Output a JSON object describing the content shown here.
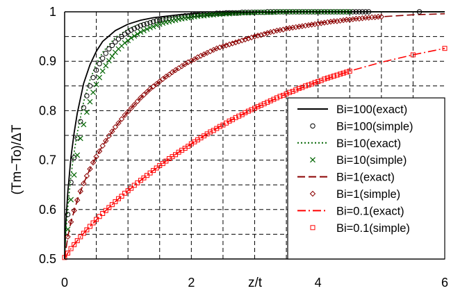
{
  "chart_data": {
    "type": "line",
    "xlabel": "z/t",
    "ylabel": "(Tm−To)/ΔT",
    "xlim": [
      0,
      6
    ],
    "ylim": [
      0.5,
      1.0
    ],
    "x_major_ticks": [
      "0",
      "2",
      "4",
      "6"
    ],
    "y_major_ticks": [
      "0.5",
      "0.6",
      "0.7",
      "0.8",
      "0.9",
      "1"
    ],
    "x_minor_step": 0.5,
    "y_minor_step": 0.05,
    "grid": true,
    "legend_position": "bottom-right",
    "series": [
      {
        "name": "Bi=100(exact)",
        "style": "solid",
        "color": "#000000",
        "x": [
          0,
          0.02,
          0.05,
          0.1,
          0.15,
          0.2,
          0.3,
          0.4,
          0.5,
          0.6,
          0.8,
          1.0,
          1.2,
          1.4,
          1.6,
          1.8,
          2.0,
          2.3,
          2.6,
          3.0,
          3.5,
          4.0,
          4.5,
          5.0,
          6.0
        ],
        "y": [
          0.5,
          0.575,
          0.635,
          0.706,
          0.755,
          0.795,
          0.855,
          0.893,
          0.92,
          0.94,
          0.962,
          0.975,
          0.983,
          0.988,
          0.991,
          0.994,
          0.996,
          0.997,
          0.998,
          0.999,
          1.0,
          1.0,
          1.0,
          1.0,
          1.0
        ]
      },
      {
        "name": "Bi=100(simple)",
        "style": "circle",
        "color": "#000000",
        "x": [
          0.05,
          0.1,
          0.15,
          0.2,
          0.25,
          0.3,
          0.35,
          0.4,
          0.45,
          0.5,
          0.55,
          0.6,
          0.65,
          0.7,
          0.75,
          0.8,
          0.85,
          0.9,
          0.95,
          1.0,
          1.05,
          1.1,
          1.15,
          1.2,
          1.25,
          1.3,
          1.35,
          1.4,
          1.45,
          1.5,
          1.55,
          1.6,
          1.65,
          1.7,
          1.75,
          1.8,
          1.85,
          1.9,
          1.95,
          2.0,
          2.05,
          2.1,
          2.15,
          2.2,
          2.25,
          2.3,
          2.35,
          2.4,
          2.45,
          2.5,
          2.55,
          2.6,
          2.65,
          2.7,
          2.75,
          2.8,
          2.85,
          2.9,
          2.95,
          3.0,
          3.05,
          3.1,
          3.15,
          3.2,
          3.25,
          3.3,
          3.35,
          3.4,
          3.45,
          3.5,
          3.55,
          3.6,
          3.65,
          3.7,
          3.75,
          3.8,
          3.85,
          3.9,
          3.95,
          4.0,
          4.05,
          4.1,
          4.15,
          4.2,
          4.25,
          4.3,
          4.35,
          4.4,
          4.45,
          4.5,
          4.55,
          4.6,
          4.65,
          4.7,
          4.75,
          4.8,
          5.6
        ],
        "y": [
          0.59,
          0.655,
          0.705,
          0.745,
          0.778,
          0.806,
          0.83,
          0.85,
          0.867,
          0.882,
          0.895,
          0.906,
          0.916,
          0.925,
          0.932,
          0.939,
          0.945,
          0.95,
          0.955,
          0.959,
          0.963,
          0.966,
          0.969,
          0.972,
          0.974,
          0.976,
          0.978,
          0.98,
          0.982,
          0.983,
          0.985,
          0.986,
          0.987,
          0.988,
          0.989,
          0.99,
          0.991,
          0.992,
          0.992,
          0.993,
          0.994,
          0.994,
          0.995,
          0.995,
          0.996,
          0.996,
          0.996,
          0.997,
          0.997,
          0.997,
          0.998,
          0.998,
          0.998,
          0.998,
          0.998,
          0.999,
          0.999,
          0.999,
          0.999,
          0.999,
          0.999,
          0.999,
          0.999,
          1.0,
          1.0,
          1.0,
          1.0,
          1.0,
          1.0,
          1.0,
          1.0,
          1.0,
          1.0,
          1.0,
          1.0,
          1.0,
          1.0,
          1.0,
          1.0,
          1.0,
          1.0,
          1.0,
          1.0,
          1.0,
          1.0,
          1.0,
          1.0,
          1.0,
          1.0,
          1.0,
          1.0,
          1.0,
          1.0,
          1.0,
          1.0,
          1.0,
          1.0
        ]
      },
      {
        "name": "Bi=10(exact)",
        "style": "dotted",
        "color": "#006400",
        "x": [
          0,
          0.02,
          0.05,
          0.1,
          0.15,
          0.2,
          0.3,
          0.4,
          0.5,
          0.6,
          0.8,
          1.0,
          1.2,
          1.4,
          1.6,
          1.8,
          2.0,
          2.3,
          2.6,
          3.0,
          3.5,
          4.0,
          4.5,
          5.0,
          6.0
        ],
        "y": [
          0.5,
          0.555,
          0.605,
          0.668,
          0.716,
          0.755,
          0.818,
          0.862,
          0.895,
          0.918,
          0.948,
          0.965,
          0.976,
          0.983,
          0.988,
          0.991,
          0.993,
          0.995,
          0.997,
          0.998,
          0.999,
          1.0,
          1.0,
          1.0,
          1.0
        ]
      },
      {
        "name": "Bi=10(simple)",
        "style": "x",
        "color": "#006400",
        "x": [
          0.05,
          0.1,
          0.15,
          0.2,
          0.25,
          0.3,
          0.35,
          0.4,
          0.45,
          0.5,
          0.55,
          0.6,
          0.65,
          0.7,
          0.75,
          0.8,
          0.85,
          0.9,
          0.95,
          1.0,
          1.05,
          1.1,
          1.15,
          1.2,
          1.25,
          1.3,
          1.35,
          1.4,
          1.45,
          1.5,
          1.55,
          1.6,
          1.65,
          1.7,
          1.75,
          1.8,
          1.85,
          1.9,
          1.95,
          2.0,
          2.05,
          2.1,
          2.15,
          2.2,
          2.25,
          2.3,
          2.35,
          2.4,
          2.45,
          2.5,
          2.55,
          2.6,
          2.65,
          2.7,
          2.75,
          2.8,
          2.85,
          2.9,
          2.95,
          3.0,
          3.05,
          3.1,
          3.15,
          3.2,
          3.25,
          3.3,
          3.35,
          3.4,
          3.45,
          3.5,
          3.55,
          3.6,
          3.65,
          3.7,
          3.75,
          3.8,
          3.85,
          3.9,
          3.95,
          4.0,
          4.05,
          4.1,
          4.15,
          4.2,
          4.25,
          4.3,
          4.35,
          4.4,
          4.45,
          4.5
        ],
        "y": [
          0.56,
          0.62,
          0.67,
          0.71,
          0.744,
          0.772,
          0.797,
          0.818,
          0.837,
          0.853,
          0.867,
          0.88,
          0.891,
          0.901,
          0.91,
          0.918,
          0.925,
          0.931,
          0.937,
          0.942,
          0.947,
          0.951,
          0.955,
          0.959,
          0.962,
          0.965,
          0.968,
          0.97,
          0.973,
          0.975,
          0.977,
          0.979,
          0.98,
          0.982,
          0.983,
          0.985,
          0.986,
          0.987,
          0.988,
          0.989,
          0.99,
          0.991,
          0.992,
          0.992,
          0.993,
          0.994,
          0.994,
          0.995,
          0.995,
          0.996,
          0.996,
          0.996,
          0.997,
          0.997,
          0.997,
          0.998,
          0.998,
          0.998,
          0.998,
          0.999,
          0.999,
          0.999,
          0.999,
          0.999,
          0.999,
          0.999,
          1.0,
          1.0,
          1.0,
          1.0,
          1.0,
          1.0,
          1.0,
          1.0,
          1.0,
          1.0,
          1.0,
          1.0,
          1.0,
          1.0,
          1.0,
          1.0,
          1.0,
          1.0,
          1.0,
          1.0,
          1.0,
          1.0,
          1.0,
          1.0
        ]
      },
      {
        "name": "Bi=1(exact)",
        "style": "dashed",
        "color": "#8b0000",
        "x": [
          0,
          0.05,
          0.1,
          0.2,
          0.3,
          0.4,
          0.5,
          0.6,
          0.8,
          1.0,
          1.2,
          1.4,
          1.6,
          1.8,
          2.0,
          2.2,
          2.4,
          2.6,
          2.8,
          3.0,
          3.2,
          3.5,
          4.0,
          4.5,
          5.0,
          5.5,
          6.0
        ],
        "y": [
          0.5,
          0.545,
          0.575,
          0.619,
          0.653,
          0.682,
          0.707,
          0.729,
          0.767,
          0.798,
          0.826,
          0.849,
          0.869,
          0.886,
          0.901,
          0.914,
          0.926,
          0.936,
          0.944,
          0.952,
          0.958,
          0.966,
          0.977,
          0.985,
          0.99,
          0.994,
          0.996
        ]
      },
      {
        "name": "Bi=1(simple)",
        "style": "diamond",
        "color": "#8b0000",
        "x": [
          0.05,
          0.1,
          0.15,
          0.2,
          0.25,
          0.3,
          0.35,
          0.4,
          0.45,
          0.5,
          0.55,
          0.6,
          0.65,
          0.7,
          0.75,
          0.8,
          0.85,
          0.9,
          0.95,
          1.0,
          1.05,
          1.1,
          1.15,
          1.2,
          1.25,
          1.3,
          1.35,
          1.4,
          1.45,
          1.5,
          1.55,
          1.6,
          1.65,
          1.7,
          1.75,
          1.8,
          1.85,
          1.9,
          1.95,
          2.0,
          2.05,
          2.1,
          2.15,
          2.2,
          2.25,
          2.3,
          2.35,
          2.4,
          2.45,
          2.5,
          2.55,
          2.6,
          2.65,
          2.7,
          2.75,
          2.8,
          2.85,
          2.9,
          2.95,
          3.0,
          3.05,
          3.1,
          3.15,
          3.2,
          3.25,
          3.3,
          3.35,
          3.4,
          3.45,
          3.5,
          3.55,
          3.6,
          3.65,
          3.7,
          3.75,
          3.8,
          3.85,
          3.9,
          3.95,
          4.0,
          4.05,
          4.1,
          4.15,
          4.2,
          4.25,
          4.3,
          4.35,
          4.4,
          4.45,
          4.5,
          4.55,
          4.6,
          4.65,
          4.7,
          4.75,
          4.8,
          4.85,
          4.9,
          4.95,
          5.0
        ],
        "y": [
          0.545,
          0.575,
          0.598,
          0.619,
          0.637,
          0.653,
          0.668,
          0.682,
          0.695,
          0.707,
          0.718,
          0.729,
          0.739,
          0.749,
          0.758,
          0.767,
          0.775,
          0.783,
          0.791,
          0.798,
          0.805,
          0.812,
          0.819,
          0.826,
          0.832,
          0.838,
          0.844,
          0.849,
          0.854,
          0.859,
          0.864,
          0.869,
          0.873,
          0.878,
          0.882,
          0.886,
          0.89,
          0.894,
          0.898,
          0.901,
          0.904,
          0.908,
          0.911,
          0.914,
          0.917,
          0.92,
          0.923,
          0.926,
          0.928,
          0.93,
          0.932,
          0.934,
          0.936,
          0.938,
          0.94,
          0.942,
          0.944,
          0.946,
          0.948,
          0.95,
          0.952,
          0.953,
          0.955,
          0.957,
          0.959,
          0.96,
          0.962,
          0.963,
          0.964,
          0.966,
          0.967,
          0.968,
          0.969,
          0.97,
          0.971,
          0.972,
          0.973,
          0.974,
          0.975,
          0.976,
          0.977,
          0.978,
          0.979,
          0.98,
          0.981,
          0.981,
          0.982,
          0.983,
          0.984,
          0.984,
          0.985,
          0.986,
          0.986,
          0.987,
          0.988,
          0.988,
          0.989,
          0.989,
          0.99,
          0.99
        ]
      },
      {
        "name": "Bi=0.1(exact)",
        "style": "dashdot",
        "color": "#ff0000",
        "x": [
          0,
          0.02,
          0.05,
          0.1,
          0.2,
          0.3,
          0.4,
          0.6,
          0.8,
          1.0,
          1.2,
          1.4,
          1.6,
          1.8,
          2.0,
          2.3,
          2.6,
          3.0,
          3.5,
          4.0,
          4.5,
          5.0,
          5.5,
          6.0
        ],
        "y": [
          0.5,
          0.505,
          0.512,
          0.521,
          0.537,
          0.552,
          0.566,
          0.592,
          0.616,
          0.638,
          0.659,
          0.679,
          0.698,
          0.716,
          0.733,
          0.757,
          0.779,
          0.805,
          0.834,
          0.859,
          0.88,
          0.898,
          0.913,
          0.926
        ]
      },
      {
        "name": "Bi=0.1(simple)",
        "style": "square",
        "color": "#ff0000",
        "x": [
          0.0,
          0.05,
          0.1,
          0.15,
          0.2,
          0.25,
          0.3,
          0.35,
          0.4,
          0.45,
          0.5,
          0.55,
          0.6,
          0.65,
          0.7,
          0.75,
          0.8,
          0.85,
          0.9,
          0.95,
          1.0,
          1.05,
          1.1,
          1.15,
          1.2,
          1.25,
          1.3,
          1.35,
          1.4,
          1.45,
          1.5,
          1.55,
          1.6,
          1.65,
          1.7,
          1.75,
          1.8,
          1.85,
          1.9,
          1.95,
          2.0,
          2.05,
          2.1,
          2.15,
          2.2,
          2.25,
          2.3,
          2.35,
          2.4,
          2.45,
          2.5,
          2.55,
          2.6,
          2.65,
          2.7,
          2.75,
          2.8,
          2.85,
          2.9,
          2.95,
          3.0,
          3.05,
          3.1,
          3.15,
          3.2,
          3.25,
          3.3,
          3.35,
          3.4,
          3.45,
          3.5,
          3.55,
          3.6,
          3.65,
          3.7,
          3.75,
          3.8,
          3.85,
          3.9,
          3.95,
          4.0,
          4.05,
          4.1,
          4.15,
          4.2,
          4.25,
          4.3,
          4.35,
          4.4,
          4.45,
          4.5,
          5.5,
          6.0
        ],
        "y": [
          0.503,
          0.512,
          0.521,
          0.529,
          0.537,
          0.545,
          0.552,
          0.559,
          0.566,
          0.573,
          0.58,
          0.586,
          0.592,
          0.598,
          0.604,
          0.61,
          0.616,
          0.622,
          0.627,
          0.633,
          0.638,
          0.643,
          0.649,
          0.654,
          0.659,
          0.664,
          0.669,
          0.674,
          0.679,
          0.684,
          0.689,
          0.693,
          0.698,
          0.703,
          0.707,
          0.711,
          0.716,
          0.72,
          0.724,
          0.728,
          0.733,
          0.737,
          0.741,
          0.745,
          0.749,
          0.753,
          0.757,
          0.76,
          0.764,
          0.768,
          0.771,
          0.775,
          0.779,
          0.782,
          0.786,
          0.789,
          0.792,
          0.796,
          0.799,
          0.802,
          0.805,
          0.808,
          0.811,
          0.814,
          0.817,
          0.82,
          0.823,
          0.826,
          0.829,
          0.831,
          0.834,
          0.837,
          0.839,
          0.842,
          0.845,
          0.847,
          0.85,
          0.852,
          0.854,
          0.857,
          0.859,
          0.861,
          0.864,
          0.866,
          0.868,
          0.87,
          0.872,
          0.874,
          0.876,
          0.878,
          0.88,
          0.913,
          0.926
        ]
      }
    ]
  }
}
